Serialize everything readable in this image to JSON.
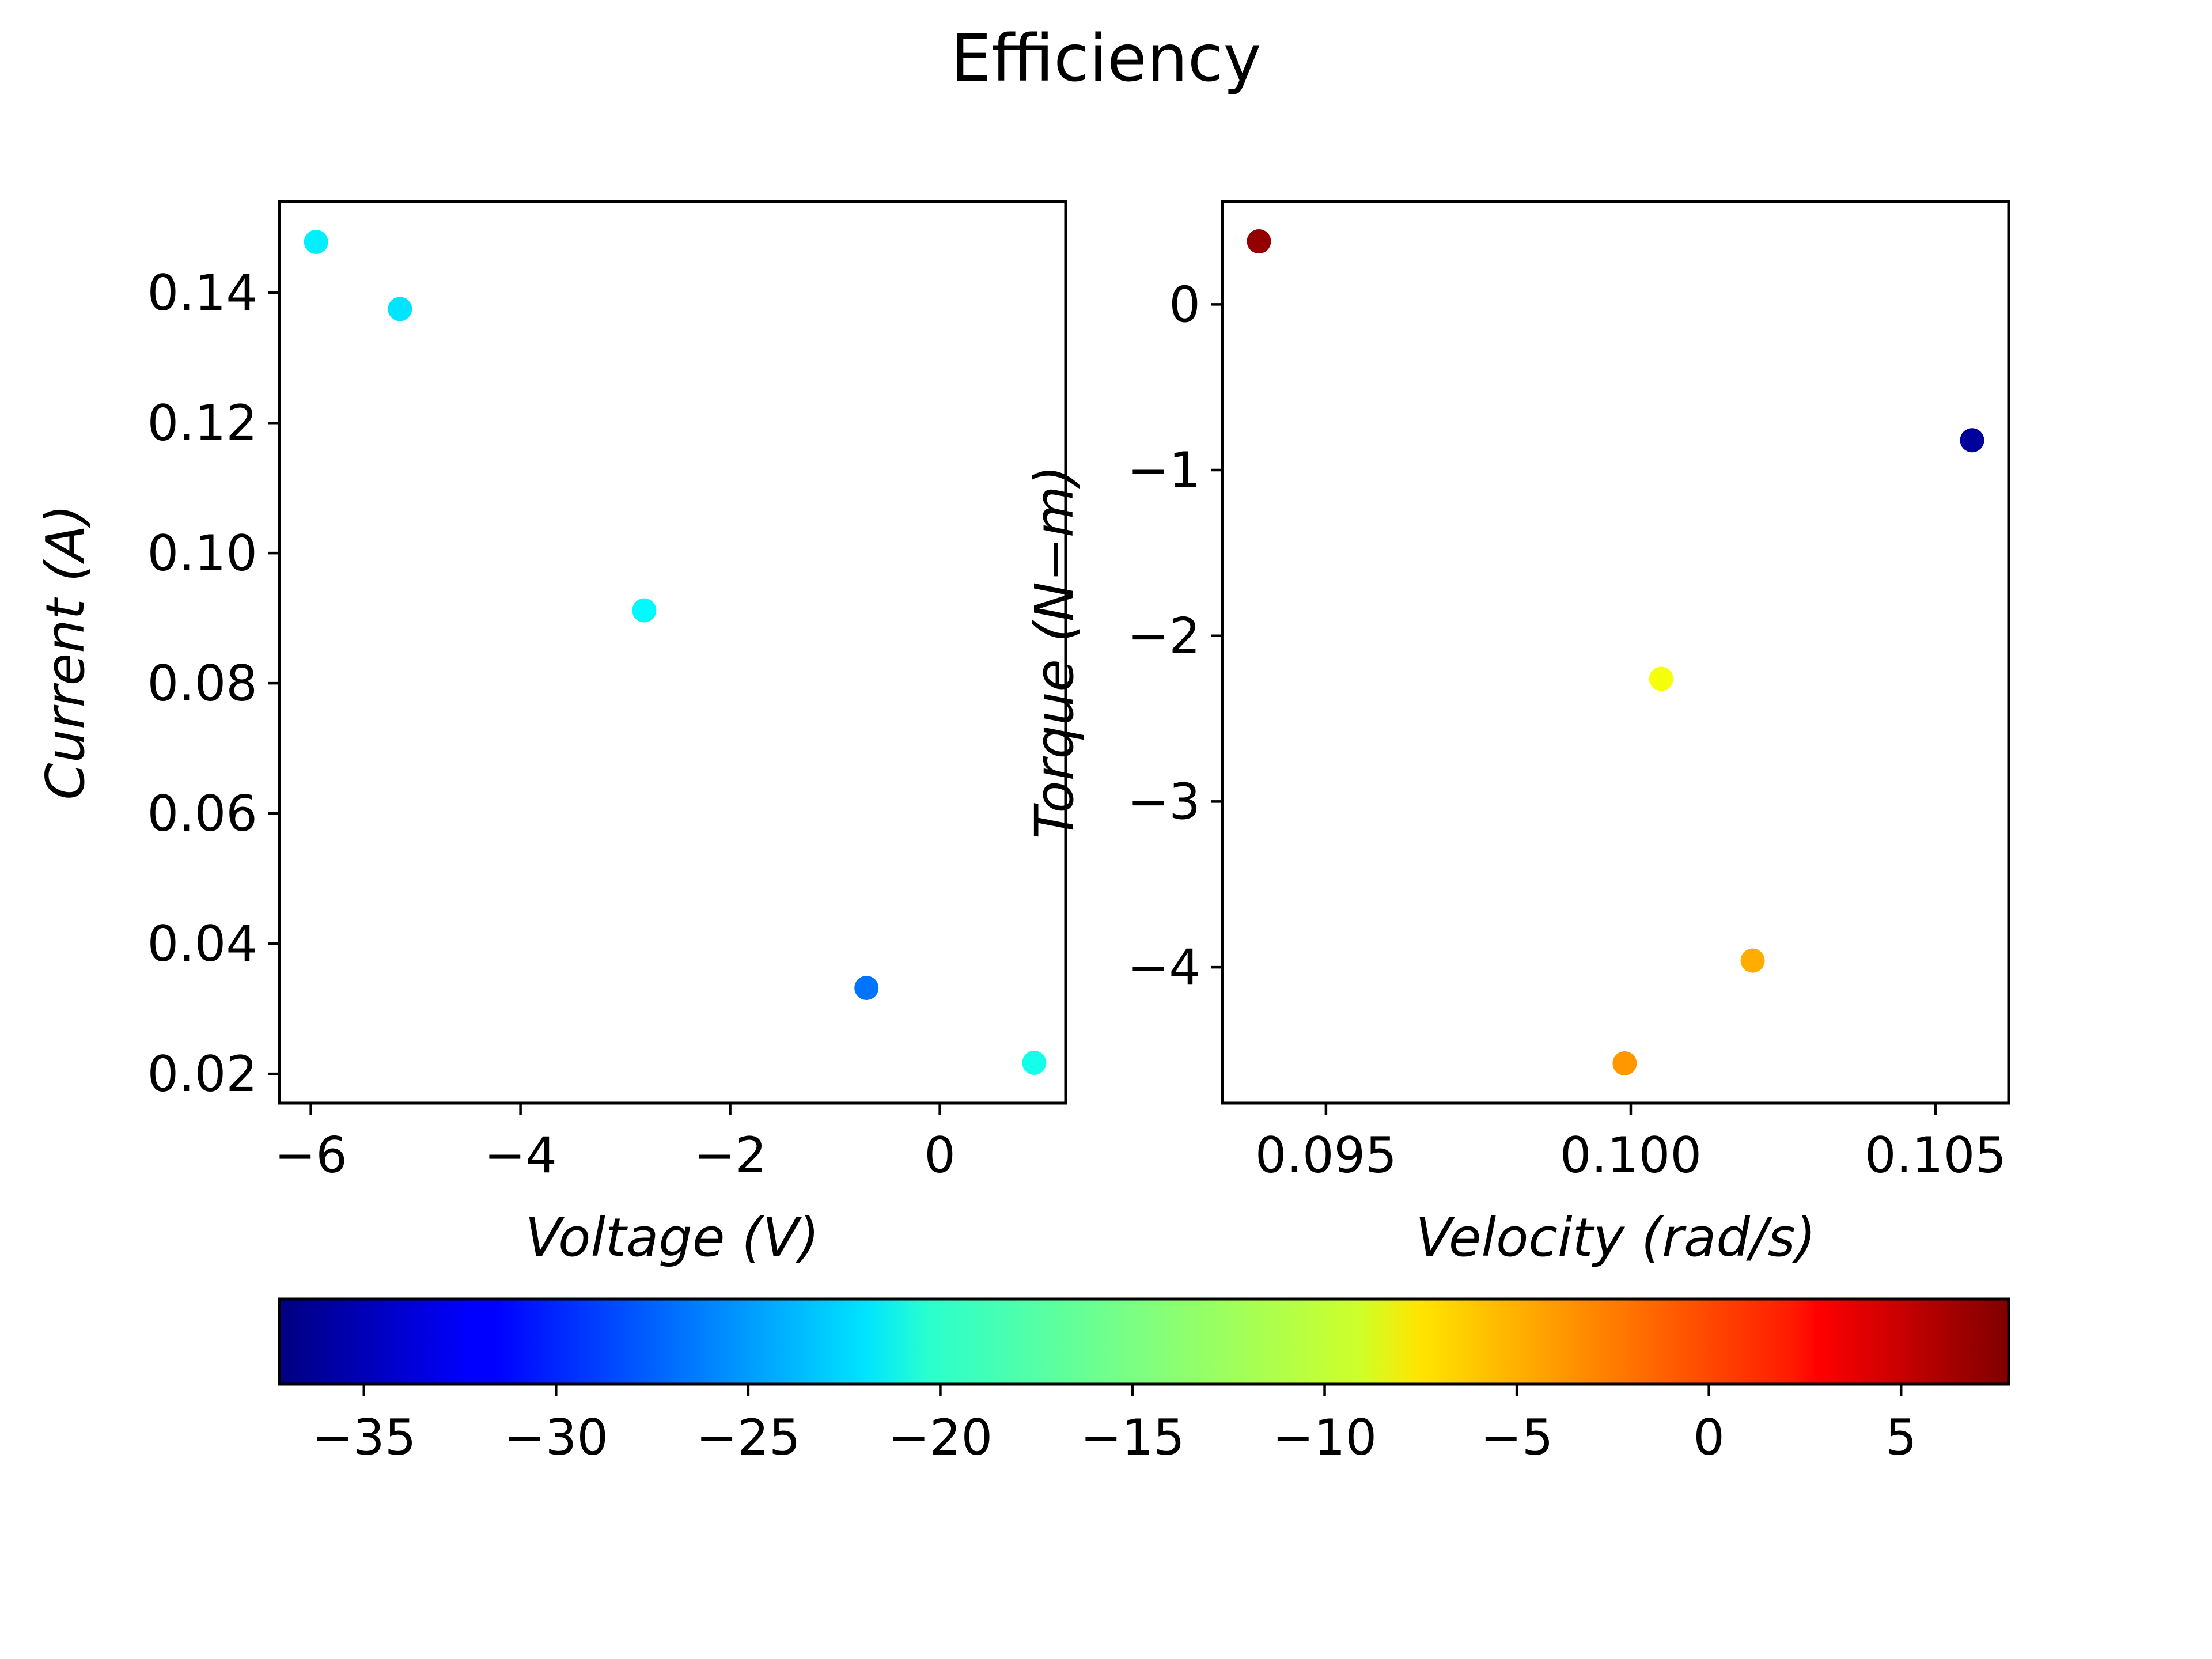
{
  "figure": {
    "title": "Efficiency"
  },
  "chart_data": [
    {
      "type": "scatter",
      "xlabel": "Voltage (V)",
      "ylabel": "Current (A)",
      "xlim": [
        -6.3,
        1.2
      ],
      "ylim": [
        0.0155,
        0.154
      ],
      "xticks": [
        -6,
        -4,
        -2,
        0
      ],
      "xtick_labels": [
        "−6",
        "−4",
        "−2",
        "0"
      ],
      "yticks": [
        0.02,
        0.04,
        0.06,
        0.08,
        0.1,
        0.12,
        0.14
      ],
      "ytick_labels": [
        "0.02",
        "0.04",
        "0.06",
        "0.08",
        "0.10",
        "0.12",
        "0.14"
      ],
      "grid": false,
      "points": [
        {
          "x": -5.95,
          "y": 0.1478,
          "c": -21.0
        },
        {
          "x": -5.15,
          "y": 0.1375,
          "c": -21.5
        },
        {
          "x": -2.82,
          "y": 0.0912,
          "c": -20.5
        },
        {
          "x": -0.7,
          "y": 0.0332,
          "c": -26.5
        },
        {
          "x": 0.9,
          "y": 0.0217,
          "c": -19.5
        }
      ]
    },
    {
      "type": "scatter",
      "xlabel": "Velocity (rad/s)",
      "ylabel": "Torque (N−m)",
      "xlim": [
        0.0933,
        0.1062
      ],
      "ylim": [
        -4.82,
        0.62
      ],
      "xticks": [
        0.095,
        0.1,
        0.105
      ],
      "xtick_labels": [
        "0.095",
        "0.100",
        "0.105"
      ],
      "yticks": [
        0,
        -1,
        -2,
        -3,
        -4
      ],
      "ytick_labels": [
        "0",
        "−1",
        "−2",
        "−3",
        "−4"
      ],
      "grid": false,
      "points": [
        {
          "x": 0.0939,
          "y": 0.38,
          "c": 7.0
        },
        {
          "x": 0.1056,
          "y": -0.82,
          "c": -36.0
        },
        {
          "x": 0.1005,
          "y": -2.26,
          "c": -9.5
        },
        {
          "x": 0.102,
          "y": -3.96,
          "c": -5.5
        },
        {
          "x": 0.0999,
          "y": -4.58,
          "c": -4.5
        }
      ]
    }
  ],
  "colorbar": {
    "colormap": "jet",
    "range": [
      -37.2,
      7.8
    ],
    "ticks": [
      -35,
      -30,
      -25,
      -20,
      -15,
      -10,
      -5,
      0,
      5
    ],
    "tick_labels": [
      "−35",
      "−30",
      "−25",
      "−20",
      "−15",
      "−10",
      "−5",
      "0",
      "5"
    ],
    "orientation": "horizontal"
  }
}
